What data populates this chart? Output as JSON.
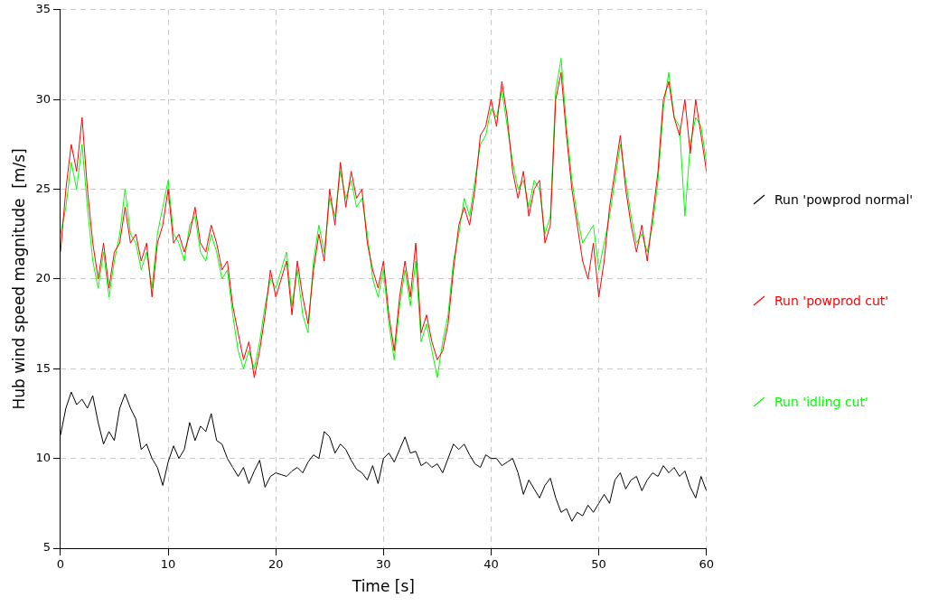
{
  "chart_data": {
    "type": "line",
    "xlabel": "Time [s]",
    "ylabel": "Hub wind speed magnitude  [m/s]",
    "x": [
      0,
      0.5,
      1,
      1.5,
      2,
      2.5,
      3,
      3.5,
      4,
      4.5,
      5,
      5.5,
      6,
      6.5,
      7,
      7.5,
      8,
      8.5,
      9,
      9.5,
      10,
      10.5,
      11,
      11.5,
      12,
      12.5,
      13,
      13.5,
      14,
      14.5,
      15,
      15.5,
      16,
      16.5,
      17,
      17.5,
      18,
      18.5,
      19,
      19.5,
      20,
      20.5,
      21,
      21.5,
      22,
      22.5,
      23,
      23.5,
      24,
      24.5,
      25,
      25.5,
      26,
      26.5,
      27,
      27.5,
      28,
      28.5,
      29,
      29.5,
      30,
      30.5,
      31,
      31.5,
      32,
      32.5,
      33,
      33.5,
      34,
      34.5,
      35,
      35.5,
      36,
      36.5,
      37,
      37.5,
      38,
      38.5,
      39,
      39.5,
      40,
      40.5,
      41,
      41.5,
      42,
      42.5,
      43,
      43.5,
      44,
      44.5,
      45,
      45.5,
      46,
      46.5,
      47,
      47.5,
      48,
      48.5,
      49,
      49.5,
      50,
      50.5,
      51,
      51.5,
      52,
      52.5,
      53,
      53.5,
      54,
      54.5,
      55,
      55.5,
      56,
      56.5,
      57,
      57.5,
      58,
      58.5,
      59,
      59.5,
      60
    ],
    "series": [
      {
        "name": "Run 'powprod normal'",
        "color": "#000000",
        "values": [
          11.3,
          12.8,
          13.7,
          13.0,
          13.3,
          12.8,
          13.5,
          12.0,
          10.8,
          11.5,
          11.0,
          12.8,
          13.6,
          12.8,
          12.2,
          10.5,
          10.8,
          10.0,
          9.5,
          8.5,
          9.8,
          10.7,
          10.0,
          10.5,
          12.0,
          11.0,
          11.8,
          11.5,
          12.5,
          11.0,
          10.8,
          10.0,
          9.5,
          9.0,
          9.5,
          8.6,
          9.3,
          9.9,
          8.4,
          9.0,
          9.2,
          9.1,
          9.0,
          9.3,
          9.5,
          9.2,
          9.8,
          10.2,
          10.0,
          11.5,
          11.2,
          10.3,
          10.8,
          10.5,
          9.9,
          9.4,
          9.2,
          8.8,
          9.6,
          8.6,
          10.0,
          10.3,
          9.8,
          10.5,
          11.2,
          10.3,
          10.4,
          9.6,
          9.8,
          9.5,
          9.7,
          9.2,
          10.0,
          10.8,
          10.5,
          10.8,
          10.2,
          9.7,
          9.5,
          10.2,
          10.0,
          10.0,
          9.6,
          9.8,
          10.0,
          9.2,
          8.0,
          8.8,
          8.3,
          7.8,
          8.5,
          8.9,
          7.8,
          7.0,
          7.2,
          6.5,
          7.0,
          6.8,
          7.4,
          7.0,
          7.5,
          8.0,
          7.5,
          8.8,
          9.2,
          8.3,
          8.8,
          9.0,
          8.2,
          8.8,
          9.2,
          9.0,
          9.6,
          9.2,
          9.5,
          9.0,
          9.3,
          8.4,
          7.8,
          9.0,
          8.2
        ]
      },
      {
        "name": "Run 'powprod cut'",
        "color": "#ff0000",
        "values": [
          21.5,
          25,
          27.5,
          26,
          29,
          25,
          22,
          20,
          22,
          19.5,
          21.5,
          22,
          24,
          22,
          22.5,
          21,
          22,
          19,
          22,
          23,
          25,
          22,
          22.5,
          21.5,
          22.5,
          24,
          22,
          21.5,
          23,
          22,
          20.5,
          21,
          18.5,
          17,
          15.5,
          16.5,
          14.5,
          16,
          18,
          20.5,
          19,
          20,
          21,
          18,
          21,
          19,
          17.5,
          20.5,
          22.5,
          21,
          25,
          23,
          26.5,
          24,
          26,
          24.5,
          25,
          22,
          20.5,
          19.5,
          21,
          18,
          16,
          19,
          21,
          19,
          22,
          17,
          18,
          16.5,
          15.5,
          16,
          17.5,
          20.5,
          23,
          24,
          23,
          25,
          28,
          28.5,
          30,
          28.5,
          31,
          29,
          26,
          24.5,
          26,
          23.5,
          25,
          25.5,
          22,
          23,
          30,
          31.5,
          28,
          25,
          23,
          21,
          20,
          22,
          19,
          21,
          24,
          26,
          28,
          25,
          23,
          21.5,
          23,
          21,
          23.5,
          26,
          30,
          31,
          29,
          28,
          30,
          27,
          30,
          28,
          26
        ]
      },
      {
        "name": "Run 'idling cut'",
        "color": "#00ff00",
        "values": [
          22.5,
          24,
          26.5,
          25,
          27.5,
          24,
          21,
          19.5,
          21.5,
          19,
          21,
          22.5,
          25,
          22.5,
          22,
          20.5,
          21.5,
          19.5,
          22.5,
          24,
          25.5,
          22.5,
          22,
          21,
          23,
          23.5,
          21.5,
          21,
          22.5,
          21.5,
          20,
          20.5,
          18,
          16,
          15,
          16,
          15,
          16.5,
          18.5,
          20,
          19.5,
          20.5,
          21.5,
          18.5,
          20.5,
          18,
          17,
          21,
          23,
          21.5,
          24.5,
          23.5,
          26,
          24.5,
          25.5,
          24,
          24.5,
          22.5,
          20,
          19,
          20.5,
          17.5,
          15.5,
          18.5,
          20.5,
          18.5,
          21,
          16.5,
          17.5,
          16,
          14.5,
          16.5,
          18,
          21,
          22.5,
          24.5,
          23.5,
          25.5,
          27.5,
          28,
          29.5,
          29,
          30.5,
          28.5,
          26.5,
          25,
          25.5,
          24,
          25.5,
          25,
          22.5,
          23.5,
          30.5,
          32.3,
          28.5,
          25.5,
          23.5,
          22,
          22.5,
          23,
          20.5,
          22,
          23.5,
          25.5,
          27.5,
          25.5,
          23.5,
          22,
          22.5,
          21.5,
          23,
          25.5,
          29.5,
          31.5,
          29,
          28.5,
          23.5,
          27.5,
          29,
          28.5,
          26.5
        ]
      }
    ],
    "xlim": [
      0,
      60
    ],
    "xticks": [
      0,
      10,
      20,
      30,
      40,
      50,
      60
    ],
    "ylim": [
      5,
      35
    ],
    "yticks": [
      5,
      10,
      15,
      20,
      25,
      30,
      35
    ],
    "grid": true,
    "legend": "right",
    "marker": "none",
    "line_style": "solid"
  }
}
